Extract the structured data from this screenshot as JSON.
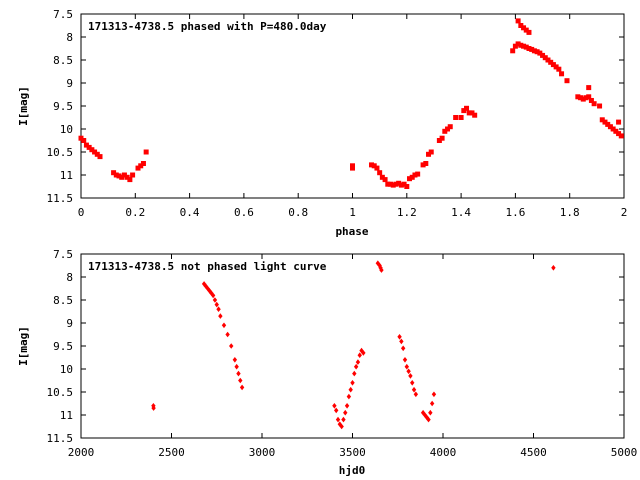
{
  "chart_data": [
    {
      "type": "scatter",
      "title": "171313-4738.5 phased with P=480.0day",
      "xlabel": "phase",
      "ylabel": "I[mag]",
      "xlim": [
        0,
        2
      ],
      "ylim": [
        7.5,
        11.5
      ],
      "y_inverted": true,
      "x_ticks": [
        0,
        0.2,
        0.4,
        0.6,
        0.8,
        1,
        1.2,
        1.4,
        1.6,
        1.8,
        2
      ],
      "x_tick_labels": [
        "0",
        "0.2",
        "0.4",
        "0.6",
        "0.8",
        "1",
        "1.2",
        "1.4",
        "1.6",
        "1.8",
        "2"
      ],
      "y_ticks": [
        7.5,
        8,
        8.5,
        9,
        9.5,
        10,
        10.5,
        11,
        11.5
      ],
      "y_tick_labels": [
        "7.5",
        "8",
        "8.5",
        "9",
        "9.5",
        "10",
        "10.5",
        "11",
        "11.5"
      ],
      "grid": false,
      "series": [
        {
          "color": "#ff0000",
          "marker": "square",
          "points": [
            [
              0.0,
              10.2
            ],
            [
              0.01,
              10.25
            ],
            [
              0.02,
              10.35
            ],
            [
              0.03,
              10.4
            ],
            [
              0.04,
              10.45
            ],
            [
              0.05,
              10.5
            ],
            [
              0.06,
              10.55
            ],
            [
              0.07,
              10.6
            ],
            [
              0.12,
              10.95
            ],
            [
              0.13,
              11.0
            ],
            [
              0.14,
              11.02
            ],
            [
              0.15,
              11.05
            ],
            [
              0.16,
              11.0
            ],
            [
              0.17,
              11.05
            ],
            [
              0.18,
              11.1
            ],
            [
              0.19,
              11.0
            ],
            [
              0.21,
              10.85
            ],
            [
              0.22,
              10.8
            ],
            [
              0.23,
              10.75
            ],
            [
              0.24,
              10.5
            ],
            [
              1.0,
              10.8
            ],
            [
              1.0,
              10.85
            ],
            [
              1.07,
              10.78
            ],
            [
              1.08,
              10.8
            ],
            [
              1.09,
              10.85
            ],
            [
              1.1,
              10.95
            ],
            [
              1.11,
              11.05
            ],
            [
              1.12,
              11.1
            ],
            [
              1.13,
              11.2
            ],
            [
              1.14,
              11.2
            ],
            [
              1.15,
              11.22
            ],
            [
              1.16,
              11.2
            ],
            [
              1.17,
              11.18
            ],
            [
              1.18,
              11.22
            ],
            [
              1.19,
              11.2
            ],
            [
              1.2,
              11.25
            ],
            [
              1.21,
              11.08
            ],
            [
              1.22,
              11.05
            ],
            [
              1.23,
              11.0
            ],
            [
              1.24,
              10.98
            ],
            [
              1.26,
              10.78
            ],
            [
              1.27,
              10.75
            ],
            [
              1.28,
              10.55
            ],
            [
              1.29,
              10.5
            ],
            [
              1.32,
              10.25
            ],
            [
              1.33,
              10.2
            ],
            [
              1.34,
              10.05
            ],
            [
              1.35,
              10.0
            ],
            [
              1.36,
              9.95
            ],
            [
              1.38,
              9.75
            ],
            [
              1.4,
              9.75
            ],
            [
              1.41,
              9.6
            ],
            [
              1.42,
              9.55
            ],
            [
              1.43,
              9.65
            ],
            [
              1.44,
              9.65
            ],
            [
              1.45,
              9.7
            ],
            [
              1.59,
              8.3
            ],
            [
              1.6,
              8.2
            ],
            [
              1.61,
              8.15
            ],
            [
              1.62,
              8.18
            ],
            [
              1.63,
              8.2
            ],
            [
              1.64,
              8.22
            ],
            [
              1.65,
              8.25
            ],
            [
              1.66,
              8.27
            ],
            [
              1.67,
              8.3
            ],
            [
              1.68,
              8.32
            ],
            [
              1.69,
              8.35
            ],
            [
              1.7,
              8.4
            ],
            [
              1.71,
              8.45
            ],
            [
              1.72,
              8.5
            ],
            [
              1.73,
              8.55
            ],
            [
              1.74,
              8.6
            ],
            [
              1.75,
              8.65
            ],
            [
              1.76,
              8.7
            ],
            [
              1.77,
              8.8
            ],
            [
              1.79,
              8.95
            ],
            [
              1.61,
              7.65
            ],
            [
              1.62,
              7.75
            ],
            [
              1.63,
              7.8
            ],
            [
              1.64,
              7.85
            ],
            [
              1.65,
              7.9
            ],
            [
              1.83,
              9.3
            ],
            [
              1.84,
              9.32
            ],
            [
              1.85,
              9.35
            ],
            [
              1.86,
              9.32
            ],
            [
              1.87,
              9.1
            ],
            [
              1.87,
              9.3
            ],
            [
              1.88,
              9.38
            ],
            [
              1.89,
              9.45
            ],
            [
              1.91,
              9.5
            ],
            [
              1.92,
              9.8
            ],
            [
              1.93,
              9.85
            ],
            [
              1.94,
              9.9
            ],
            [
              1.95,
              9.95
            ],
            [
              1.96,
              10.0
            ],
            [
              1.97,
              10.05
            ],
            [
              1.98,
              10.1
            ],
            [
              1.98,
              9.85
            ],
            [
              1.99,
              10.15
            ]
          ]
        }
      ]
    },
    {
      "type": "scatter",
      "title": "171313-4738.5 not phased light curve",
      "xlabel": "hjd0",
      "ylabel": "I[mag]",
      "xlim": [
        2000,
        5000
      ],
      "ylim": [
        7.5,
        11.5
      ],
      "y_inverted": true,
      "x_ticks": [
        2000,
        2500,
        3000,
        3500,
        4000,
        4500,
        5000
      ],
      "x_tick_labels": [
        "2000",
        "2500",
        "3000",
        "3500",
        "4000",
        "4500",
        "5000"
      ],
      "y_ticks": [
        7.5,
        8,
        8.5,
        9,
        9.5,
        10,
        10.5,
        11,
        11.5
      ],
      "y_tick_labels": [
        "7.5",
        "8",
        "8.5",
        "9",
        "9.5",
        "10",
        "10.5",
        "11",
        "11.5"
      ],
      "grid": false,
      "series": [
        {
          "color": "#ff0000",
          "marker": "diamond",
          "points": [
            [
              2400,
              10.8
            ],
            [
              2401,
              10.85
            ],
            [
              2680,
              8.15
            ],
            [
              2690,
              8.2
            ],
            [
              2700,
              8.25
            ],
            [
              2710,
              8.3
            ],
            [
              2720,
              8.35
            ],
            [
              2730,
              8.4
            ],
            [
              2740,
              8.5
            ],
            [
              2750,
              8.6
            ],
            [
              2760,
              8.7
            ],
            [
              2770,
              8.85
            ],
            [
              2790,
              9.05
            ],
            [
              2810,
              9.25
            ],
            [
              2830,
              9.5
            ],
            [
              2850,
              9.8
            ],
            [
              2860,
              9.95
            ],
            [
              2870,
              10.1
            ],
            [
              2880,
              10.25
            ],
            [
              2890,
              10.4
            ],
            [
              3400,
              10.8
            ],
            [
              3410,
              10.9
            ],
            [
              3420,
              11.1
            ],
            [
              3430,
              11.2
            ],
            [
              3440,
              11.25
            ],
            [
              3450,
              11.1
            ],
            [
              3460,
              10.95
            ],
            [
              3470,
              10.8
            ],
            [
              3480,
              10.6
            ],
            [
              3490,
              10.45
            ],
            [
              3500,
              10.3
            ],
            [
              3510,
              10.1
            ],
            [
              3520,
              9.95
            ],
            [
              3530,
              9.85
            ],
            [
              3540,
              9.7
            ],
            [
              3550,
              9.6
            ],
            [
              3560,
              9.65
            ],
            [
              3640,
              7.7
            ],
            [
              3650,
              7.75
            ],
            [
              3655,
              7.8
            ],
            [
              3660,
              7.85
            ],
            [
              3760,
              9.3
            ],
            [
              3770,
              9.4
            ],
            [
              3780,
              9.55
            ],
            [
              3790,
              9.8
            ],
            [
              3800,
              9.95
            ],
            [
              3810,
              10.05
            ],
            [
              3820,
              10.15
            ],
            [
              3830,
              10.3
            ],
            [
              3840,
              10.45
            ],
            [
              3850,
              10.55
            ],
            [
              3890,
              10.95
            ],
            [
              3900,
              11.0
            ],
            [
              3910,
              11.05
            ],
            [
              3920,
              11.1
            ],
            [
              3930,
              10.95
            ],
            [
              3940,
              10.75
            ],
            [
              3950,
              10.55
            ],
            [
              4610,
              7.8
            ]
          ]
        }
      ]
    }
  ]
}
